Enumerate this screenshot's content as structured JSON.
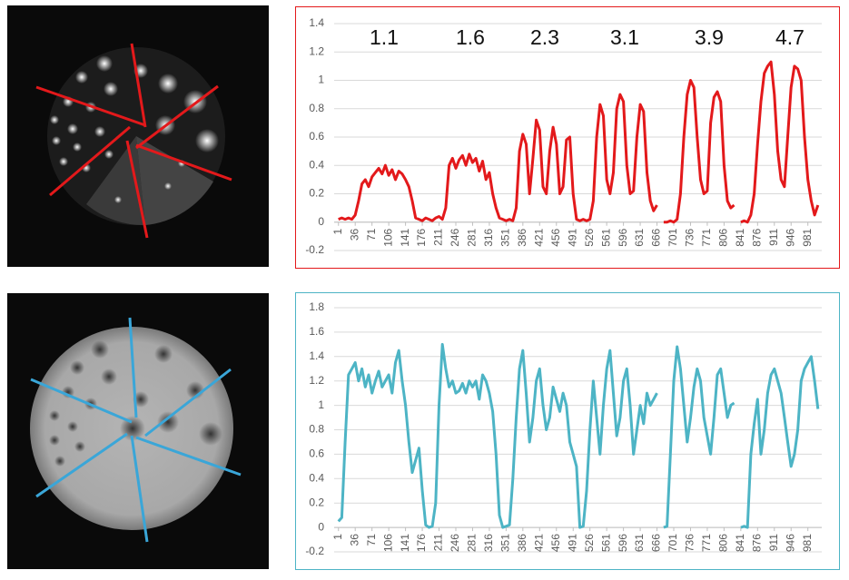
{
  "chart_data": [
    {
      "type": "line",
      "annotations": [
        "1.1",
        "1.6",
        "2.3",
        "3.1",
        "3.9",
        "4.7"
      ],
      "x": [
        1,
        8,
        15,
        22,
        29,
        36,
        43,
        50,
        57,
        64,
        71,
        78,
        85,
        92,
        99,
        106,
        113,
        120,
        127,
        134,
        141,
        148,
        155,
        162,
        169,
        176,
        183,
        190,
        197,
        204,
        211,
        218,
        225,
        232,
        239,
        246,
        253,
        260,
        267,
        274,
        281,
        288,
        295,
        302,
        309,
        316,
        323,
        330,
        337,
        344,
        351,
        358,
        365,
        372,
        379,
        386,
        393,
        400,
        407,
        414,
        421,
        428,
        435,
        442,
        449,
        456,
        463,
        470,
        477,
        484,
        491,
        498,
        505,
        512,
        519,
        526,
        533,
        540,
        547,
        554,
        561,
        568,
        575,
        582,
        589,
        596,
        603,
        610,
        617,
        624,
        631,
        638,
        645,
        652,
        659,
        666,
        673,
        680,
        687,
        694,
        701,
        708,
        715,
        722,
        729,
        736,
        743,
        750,
        757,
        764,
        771,
        778,
        785,
        792,
        799,
        806,
        813,
        820,
        827,
        834,
        841,
        848,
        855,
        862,
        869,
        876,
        883,
        890,
        897,
        904,
        911,
        918,
        925,
        932,
        939,
        946,
        953,
        960,
        967,
        974,
        981,
        988,
        995,
        1002
      ],
      "series": [
        {
          "color": "#e3191b",
          "values": [
            0.02,
            0.03,
            0.02,
            0.03,
            0.02,
            0.05,
            0.15,
            0.27,
            0.3,
            0.25,
            0.32,
            0.35,
            0.38,
            0.34,
            0.4,
            0.33,
            0.37,
            0.3,
            0.36,
            0.34,
            0.3,
            0.25,
            0.15,
            0.03,
            0.02,
            0.01,
            0.03,
            0.02,
            0.01,
            0.03,
            0.04,
            0.02,
            0.1,
            0.4,
            0.45,
            0.38,
            0.44,
            0.47,
            0.4,
            0.48,
            0.42,
            0.45,
            0.36,
            0.43,
            0.3,
            0.35,
            0.2,
            0.1,
            0.03,
            0.02,
            0.01,
            0.02,
            0.01,
            0.1,
            0.5,
            0.62,
            0.55,
            0.2,
            0.45,
            0.72,
            0.65,
            0.25,
            0.2,
            0.5,
            0.67,
            0.55,
            0.2,
            0.25,
            0.58,
            0.6,
            0.2,
            0.02,
            0.01,
            0.02,
            0.01,
            0.02,
            0.15,
            0.6,
            0.83,
            0.75,
            0.3,
            0.2,
            0.35,
            0.8,
            0.9,
            0.85,
            0.4,
            0.2,
            0.22,
            0.6,
            0.83,
            0.78,
            0.35,
            0.15,
            0.08,
            0.12,
            null,
            0.0,
            0.0,
            0.01,
            0.0,
            0.02,
            0.2,
            0.6,
            0.9,
            1.0,
            0.95,
            0.6,
            0.3,
            0.2,
            0.22,
            0.7,
            0.88,
            0.92,
            0.85,
            0.4,
            0.15,
            0.1,
            0.12,
            null,
            0.0,
            0.01,
            0.0,
            0.05,
            0.2,
            0.55,
            0.85,
            1.05,
            1.1,
            1.13,
            0.9,
            0.5,
            0.3,
            0.25,
            0.6,
            0.95,
            1.1,
            1.08,
            1.0,
            0.6,
            0.3,
            0.15,
            0.05,
            0.12
          ]
        }
      ],
      "xlim": [
        -8,
        1010
      ],
      "xticks": [
        1,
        36,
        71,
        106,
        141,
        176,
        211,
        246,
        281,
        316,
        351,
        386,
        421,
        456,
        491,
        526,
        561,
        596,
        631,
        666,
        701,
        736,
        771,
        806,
        841,
        876,
        911,
        946,
        981
      ],
      "ylim": [
        -0.2,
        1.4
      ],
      "yticks": [
        -0.2,
        0,
        0.2,
        0.4,
        0.6,
        0.8,
        1,
        1.2,
        1.4
      ],
      "grid": true
    },
    {
      "type": "line",
      "x": [
        1,
        8,
        15,
        22,
        29,
        36,
        43,
        50,
        57,
        64,
        71,
        78,
        85,
        92,
        99,
        106,
        113,
        120,
        127,
        134,
        141,
        148,
        155,
        162,
        169,
        176,
        183,
        190,
        197,
        204,
        211,
        218,
        225,
        232,
        239,
        246,
        253,
        260,
        267,
        274,
        281,
        288,
        295,
        302,
        309,
        316,
        323,
        330,
        337,
        344,
        351,
        358,
        365,
        372,
        379,
        386,
        393,
        400,
        407,
        414,
        421,
        428,
        435,
        442,
        449,
        456,
        463,
        470,
        477,
        484,
        491,
        498,
        505,
        512,
        519,
        526,
        533,
        540,
        547,
        554,
        561,
        568,
        575,
        582,
        589,
        596,
        603,
        610,
        617,
        624,
        631,
        638,
        645,
        652,
        659,
        666,
        673,
        680,
        687,
        694,
        701,
        708,
        715,
        722,
        729,
        736,
        743,
        750,
        757,
        764,
        771,
        778,
        785,
        792,
        799,
        806,
        813,
        820,
        827,
        834,
        841,
        848,
        855,
        862,
        869,
        876,
        883,
        890,
        897,
        904,
        911,
        918,
        925,
        932,
        939,
        946,
        953,
        960,
        967,
        974,
        981,
        988,
        995,
        1002
      ],
      "series": [
        {
          "color": "#4db4c5",
          "values": [
            0.05,
            0.08,
            0.7,
            1.25,
            1.3,
            1.35,
            1.2,
            1.3,
            1.15,
            1.25,
            1.1,
            1.2,
            1.28,
            1.15,
            1.2,
            1.25,
            1.1,
            1.35,
            1.45,
            1.2,
            1.0,
            0.7,
            0.45,
            0.55,
            0.65,
            0.3,
            0.02,
            0.0,
            0.01,
            0.2,
            1.0,
            1.5,
            1.3,
            1.15,
            1.2,
            1.1,
            1.12,
            1.18,
            1.1,
            1.2,
            1.15,
            1.2,
            1.05,
            1.25,
            1.2,
            1.1,
            0.95,
            0.6,
            0.1,
            0.0,
            0.01,
            0.02,
            0.4,
            0.9,
            1.3,
            1.45,
            1.1,
            0.7,
            0.9,
            1.2,
            1.3,
            1.0,
            0.8,
            0.9,
            1.15,
            1.05,
            0.95,
            1.1,
            1.0,
            0.7,
            0.6,
            0.5,
            0.0,
            0.01,
            0.3,
            0.8,
            1.2,
            0.9,
            0.6,
            1.0,
            1.3,
            1.45,
            1.1,
            0.75,
            0.9,
            1.2,
            1.3,
            1.0,
            0.6,
            0.8,
            1.0,
            0.85,
            1.1,
            1.0,
            1.05,
            1.1,
            null,
            0.0,
            0.01,
            0.6,
            1.2,
            1.48,
            1.3,
            1.0,
            0.7,
            0.9,
            1.15,
            1.3,
            1.2,
            0.9,
            0.75,
            0.6,
            0.9,
            1.25,
            1.3,
            1.1,
            0.9,
            1.0,
            1.02,
            null,
            0.0,
            0.01,
            0.0,
            0.6,
            0.85,
            1.05,
            0.6,
            0.8,
            1.1,
            1.25,
            1.3,
            1.2,
            1.1,
            0.9,
            0.7,
            0.5,
            0.6,
            0.8,
            1.2,
            1.3,
            1.35,
            1.4,
            1.2,
            0.97
          ]
        }
      ],
      "xlim": [
        -8,
        1010
      ],
      "xticks": [
        1,
        36,
        71,
        106,
        141,
        176,
        211,
        246,
        281,
        316,
        351,
        386,
        421,
        456,
        491,
        526,
        561,
        596,
        631,
        666,
        701,
        736,
        771,
        806,
        841,
        876,
        911,
        946,
        981
      ],
      "ylim": [
        -0.2,
        1.8
      ],
      "yticks": [
        -0.2,
        0,
        0.2,
        0.4,
        0.6,
        0.8,
        1,
        1.2,
        1.4,
        1.6,
        1.8
      ],
      "grid": true
    }
  ]
}
